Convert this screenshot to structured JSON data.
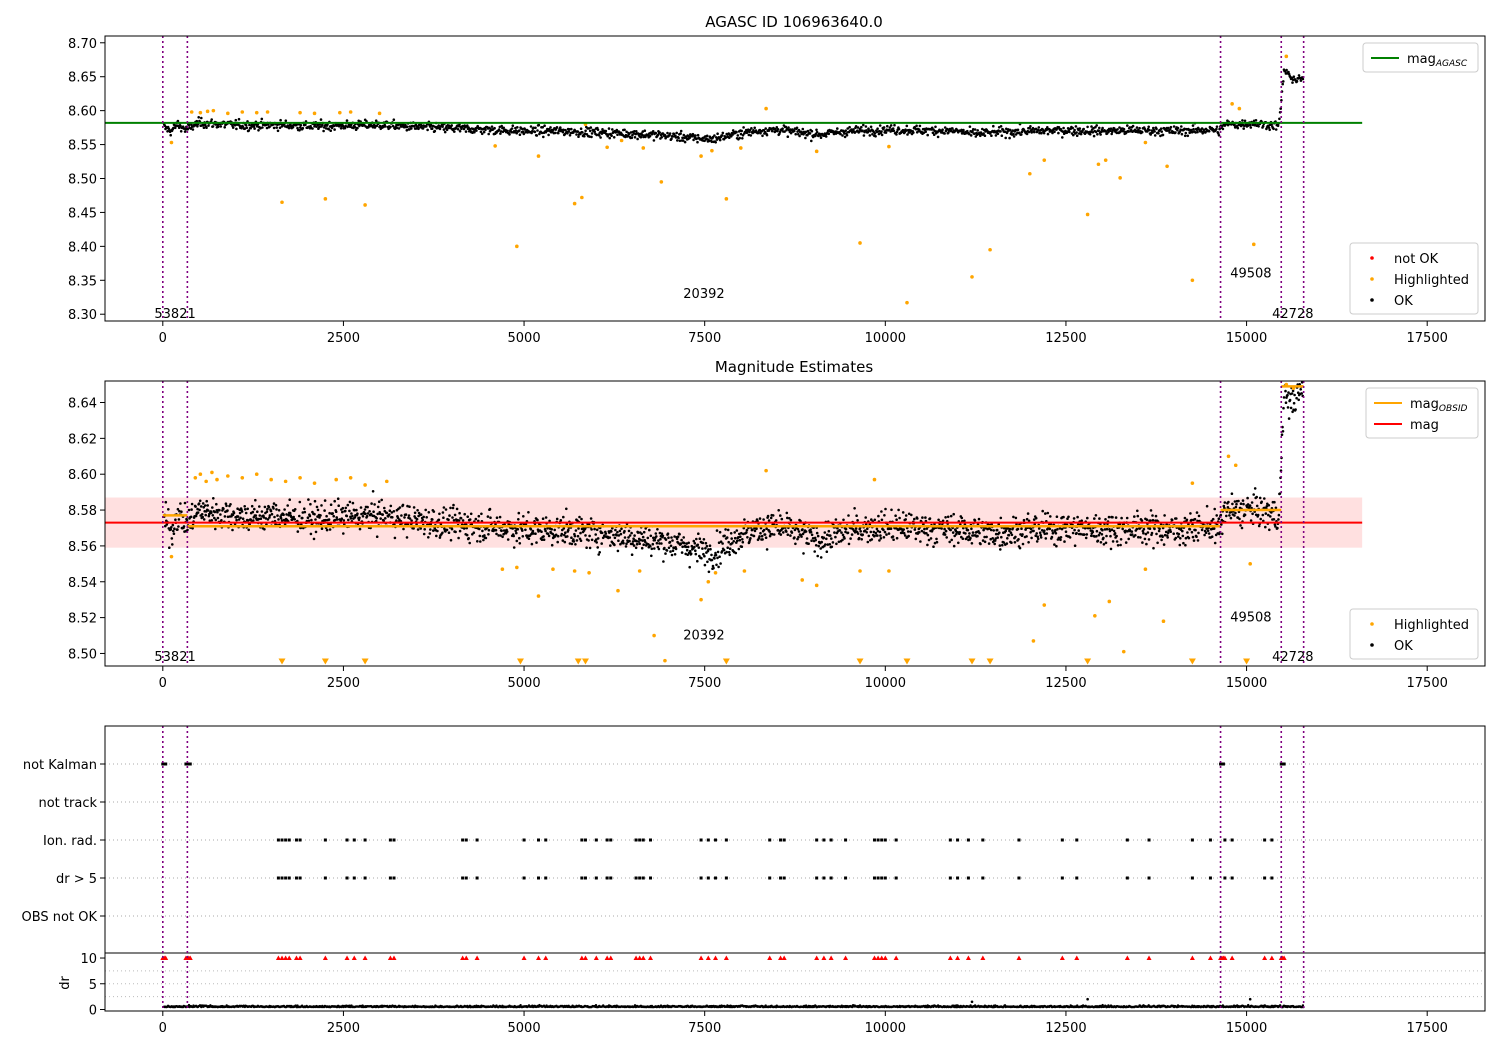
{
  "chart_data": [
    {
      "type": "scatter",
      "title": "AGASC ID 106963640.0",
      "xlim": [
        -800,
        18300
      ],
      "ylim": [
        8.29,
        8.71
      ],
      "xticks": [
        0,
        2500,
        5000,
        7500,
        10000,
        12500,
        15000,
        17500
      ],
      "xtick_labels": [
        "0",
        "2500",
        "5000",
        "7500",
        "10000",
        "12500",
        "15000",
        "17500"
      ],
      "yticks": [
        8.3,
        8.35,
        8.4,
        8.45,
        8.5,
        8.55,
        8.6,
        8.65,
        8.7
      ],
      "ytick_labels": [
        "8.30",
        "8.35",
        "8.40",
        "8.45",
        "8.50",
        "8.55",
        "8.60",
        "8.65",
        "8.70"
      ],
      "grid": false,
      "segment_boundaries": [
        0,
        340,
        14640,
        15480,
        15790
      ],
      "segment_labels": [
        {
          "text": "53821",
          "x": 170,
          "y": 8.3
        },
        {
          "text": "20392",
          "x": 7490,
          "y": 8.33
        },
        {
          "text": "49508",
          "x": 15060,
          "y": 8.36
        },
        {
          "text": "42728",
          "x": 15640,
          "y": 8.3
        }
      ],
      "series": [
        {
          "name": "mag",
          "name_sub": "AGASC",
          "kind": "line",
          "x": [
            -800,
            16600
          ],
          "y": [
            8.582,
            8.582
          ],
          "color": "#008000"
        },
        {
          "name": "not OK",
          "kind": "scatter",
          "color": "#ff0000",
          "x": [],
          "y": []
        },
        {
          "name": "Highlighted",
          "kind": "scatter",
          "color": "#ffa500",
          "x": [
            120,
            400,
            520,
            620,
            700,
            900,
            1100,
            1300,
            1450,
            1650,
            1900,
            2100,
            2250,
            2450,
            2600,
            2800,
            3000,
            4600,
            4900,
            5200,
            5700,
            5800,
            5850,
            6150,
            6350,
            6650,
            6900,
            7450,
            7600,
            7800,
            8000,
            8350,
            9050,
            9650,
            10050,
            10300,
            11200,
            11450,
            12000,
            12200,
            12800,
            12950,
            13050,
            13250,
            13600,
            13900,
            14250,
            14800,
            14900,
            15100,
            15550
          ],
          "y": [
            8.553,
            8.598,
            8.597,
            8.599,
            8.6,
            8.596,
            8.598,
            8.597,
            8.598,
            8.465,
            8.597,
            8.596,
            8.47,
            8.597,
            8.598,
            8.461,
            8.596,
            8.548,
            8.4,
            8.533,
            8.463,
            8.472,
            8.58,
            8.546,
            8.556,
            8.545,
            8.495,
            8.533,
            8.541,
            8.47,
            8.545,
            8.603,
            8.54,
            8.405,
            8.547,
            8.317,
            8.355,
            8.395,
            8.507,
            8.527,
            8.447,
            8.521,
            8.527,
            8.501,
            8.553,
            8.518,
            8.35,
            8.61,
            8.603,
            8.403,
            8.68
          ]
        },
        {
          "name": "OK",
          "kind": "scatter",
          "color": "#000000",
          "sampled": true,
          "x": [
            20,
            120,
            200,
            320,
            500,
            800,
            1200,
            1600,
            2000,
            2500,
            3000,
            3500,
            4000,
            4500,
            5000,
            5500,
            6000,
            6500,
            7000,
            7300,
            7600,
            7900,
            8200,
            8500,
            8800,
            9100,
            9500,
            10000,
            10500,
            11000,
            11200,
            11500,
            12000,
            12500,
            13000,
            13500,
            14000,
            14500,
            14620,
            14700,
            14900,
            15100,
            15300,
            15450,
            15520,
            15600,
            15700,
            15780
          ],
          "y": [
            8.575,
            8.57,
            8.58,
            8.572,
            8.582,
            8.58,
            8.578,
            8.579,
            8.577,
            8.578,
            8.579,
            8.576,
            8.574,
            8.572,
            8.57,
            8.57,
            8.568,
            8.566,
            8.563,
            8.56,
            8.558,
            8.565,
            8.57,
            8.572,
            8.568,
            8.565,
            8.57,
            8.572,
            8.571,
            8.57,
            8.566,
            8.568,
            8.57,
            8.571,
            8.57,
            8.571,
            8.57,
            8.572,
            8.57,
            8.58,
            8.58,
            8.582,
            8.579,
            8.578,
            8.66,
            8.65,
            8.645,
            8.648
          ]
        }
      ],
      "legends": [
        {
          "loc": "upper right",
          "entries": [
            {
              "label": "mag",
              "sub": "AGASC",
              "kind": "line",
              "color": "#008000"
            }
          ]
        },
        {
          "loc": "lower right",
          "entries": [
            {
              "label": "not OK",
              "kind": "dot",
              "color": "#ff0000"
            },
            {
              "label": "Highlighted",
              "kind": "dot",
              "color": "#ffa500"
            },
            {
              "label": "OK",
              "kind": "dot",
              "color": "#000000"
            }
          ]
        }
      ]
    },
    {
      "type": "scatter",
      "title": "Magnitude Estimates",
      "xlim": [
        -800,
        18300
      ],
      "ylim": [
        8.493,
        8.652
      ],
      "xticks": [
        0,
        2500,
        5000,
        7500,
        10000,
        12500,
        15000,
        17500
      ],
      "xtick_labels": [
        "0",
        "2500",
        "5000",
        "7500",
        "10000",
        "12500",
        "15000",
        "17500"
      ],
      "yticks": [
        8.5,
        8.52,
        8.54,
        8.56,
        8.58,
        8.6,
        8.62,
        8.64
      ],
      "ytick_labels": [
        "8.50",
        "8.52",
        "8.54",
        "8.56",
        "8.58",
        "8.60",
        "8.62",
        "8.64"
      ],
      "grid": false,
      "segment_boundaries": [
        0,
        340,
        14640,
        15480,
        15790
      ],
      "segment_labels": [
        {
          "text": "53821",
          "x": 170,
          "y": 8.498
        },
        {
          "text": "20392",
          "x": 7490,
          "y": 8.51
        },
        {
          "text": "49508",
          "x": 15060,
          "y": 8.52
        },
        {
          "text": "42728",
          "x": 15640,
          "y": 8.498
        }
      ],
      "band": {
        "x": [
          -800,
          16600
        ],
        "y": [
          8.559,
          8.587
        ],
        "color": "#ff0000",
        "alpha": 0.12
      },
      "series": [
        {
          "name": "mag",
          "name_sub": "OBSID",
          "kind": "step",
          "color": "#ffa500",
          "segments": [
            {
              "x": [
                0,
                340
              ],
              "y": 8.577
            },
            {
              "x": [
                340,
                14640
              ],
              "y": 8.571
            },
            {
              "x": [
                14640,
                15480
              ],
              "y": 8.58
            },
            {
              "x": [
                15480,
                15790
              ],
              "y": 8.649
            }
          ]
        },
        {
          "name": "mag",
          "kind": "line",
          "color": "#ff0000",
          "x": [
            -800,
            16600
          ],
          "y": [
            8.573,
            8.573
          ]
        },
        {
          "name": "Highlighted",
          "kind": "scatter",
          "color": "#ffa500",
          "x": [
            120,
            450,
            520,
            600,
            680,
            750,
            900,
            1100,
            1300,
            1500,
            1700,
            1900,
            2100,
            2400,
            2600,
            2800,
            3100,
            4700,
            4900,
            5200,
            5400,
            5700,
            5900,
            6300,
            6600,
            6800,
            6950,
            7450,
            7550,
            7650,
            8050,
            8350,
            8850,
            9050,
            9650,
            9850,
            10050,
            12050,
            12200,
            12900,
            13100,
            13300,
            13600,
            13850,
            14250,
            14750,
            14850,
            15050,
            15550,
            15650
          ],
          "y": [
            8.554,
            8.598,
            8.6,
            8.596,
            8.601,
            8.597,
            8.599,
            8.598,
            8.6,
            8.597,
            8.596,
            8.598,
            8.595,
            8.597,
            8.598,
            8.594,
            8.596,
            8.547,
            8.548,
            8.532,
            8.547,
            8.546,
            8.545,
            8.535,
            8.546,
            8.51,
            8.496,
            8.53,
            8.54,
            8.545,
            8.546,
            8.602,
            8.541,
            8.538,
            8.546,
            8.597,
            8.546,
            8.507,
            8.527,
            8.521,
            8.529,
            8.501,
            8.547,
            8.518,
            8.595,
            8.61,
            8.605,
            8.55,
            8.65,
            8.648
          ]
        },
        {
          "name": "Highlighted (below range)",
          "kind": "down-triangle",
          "color": "#ffa500",
          "x": [
            1650,
            2250,
            2800,
            4950,
            5750,
            5850,
            7800,
            9650,
            10300,
            11200,
            11450,
            12800,
            14250,
            15000
          ],
          "y": [
            8.493,
            8.493,
            8.493,
            8.493,
            8.493,
            8.493,
            8.493,
            8.493,
            8.493,
            8.493,
            8.493,
            8.493,
            8.493,
            8.493
          ]
        },
        {
          "name": "OK",
          "kind": "scatter",
          "color": "#000000",
          "sampled": true,
          "x": [
            20,
            120,
            200,
            320,
            500,
            800,
            1200,
            1600,
            2000,
            2500,
            3000,
            3500,
            4000,
            4500,
            5000,
            5500,
            6000,
            6500,
            7000,
            7300,
            7600,
            7900,
            8200,
            8500,
            8800,
            9100,
            9500,
            10000,
            10500,
            11000,
            11500,
            12000,
            12500,
            13000,
            13500,
            14000,
            14500,
            14620,
            14700,
            14900,
            15100,
            15300,
            15450,
            15520,
            15600,
            15700,
            15780
          ],
          "y": [
            8.575,
            8.568,
            8.578,
            8.572,
            8.58,
            8.578,
            8.576,
            8.577,
            8.575,
            8.576,
            8.577,
            8.574,
            8.572,
            8.571,
            8.569,
            8.569,
            8.567,
            8.565,
            8.562,
            8.559,
            8.556,
            8.564,
            8.569,
            8.571,
            8.567,
            8.563,
            8.569,
            8.571,
            8.57,
            8.569,
            8.567,
            8.569,
            8.57,
            8.569,
            8.57,
            8.569,
            8.571,
            8.569,
            8.58,
            8.579,
            8.581,
            8.578,
            8.577,
            8.646,
            8.64,
            8.644,
            8.647
          ]
        }
      ],
      "legends": [
        {
          "loc": "upper right",
          "entries": [
            {
              "label": "mag",
              "sub": "OBSID",
              "kind": "line",
              "color": "#ffa500"
            },
            {
              "label": "mag",
              "kind": "line",
              "color": "#ff0000"
            }
          ]
        },
        {
          "loc": "lower right",
          "entries": [
            {
              "label": "Highlighted",
              "kind": "dot",
              "color": "#ffa500"
            },
            {
              "label": "OK",
              "kind": "dot",
              "color": "#000000"
            }
          ]
        }
      ]
    },
    {
      "type": "scatter",
      "title": "",
      "xlim": [
        -800,
        18300
      ],
      "xticks": [
        0,
        2500,
        5000,
        7500,
        10000,
        12500,
        15000,
        17500
      ],
      "xtick_labels": [
        "0",
        "2500",
        "5000",
        "7500",
        "10000",
        "12500",
        "15000",
        "17500"
      ],
      "ylabel": "dr",
      "flag_rows": [
        "not Kalman",
        "not track",
        "Ion. rad.",
        "dr > 5",
        "OBS not OK"
      ],
      "dr_yticks": [
        0,
        5,
        10
      ],
      "dr_ytick_labels": [
        "0",
        "5",
        "10"
      ],
      "dr_ylim": [
        -0.5,
        10.5
      ],
      "grid": "flag rows dotted",
      "segment_boundaries": [
        0,
        340,
        14640,
        15480,
        15790
      ],
      "flags": {
        "not Kalman": [
          0,
          20,
          40,
          320,
          340,
          360,
          380,
          14640,
          14660,
          14680,
          15480,
          15500,
          15520
        ],
        "Ion. rad.": [
          1600,
          1650,
          1700,
          1750,
          1850,
          1900,
          2250,
          2550,
          2650,
          2800,
          3150,
          3200,
          4150,
          4200,
          4350,
          5000,
          5200,
          5300,
          5800,
          5850,
          6000,
          6150,
          6200,
          6550,
          6600,
          6650,
          6750,
          7450,
          7550,
          7650,
          7800,
          8400,
          8550,
          8600,
          9050,
          9150,
          9250,
          9450,
          9850,
          9900,
          9950,
          10000,
          10150,
          10900,
          11000,
          11150,
          11350,
          11850,
          12450,
          12650,
          13350,
          13650,
          14250,
          14500,
          14700,
          14800,
          15250,
          15350
        ],
        "dr > 5": [
          1600,
          1650,
          1700,
          1750,
          1850,
          1900,
          2250,
          2550,
          2650,
          2800,
          3150,
          3200,
          4150,
          4200,
          4350,
          5000,
          5200,
          5300,
          5800,
          5850,
          6000,
          6150,
          6200,
          6550,
          6600,
          6650,
          6750,
          7450,
          7550,
          7650,
          7800,
          8400,
          8550,
          8600,
          9050,
          9150,
          9250,
          9450,
          9850,
          9900,
          9950,
          10000,
          10150,
          10900,
          11000,
          11150,
          11350,
          11850,
          12450,
          12650,
          13350,
          13650,
          14250,
          14500,
          14700,
          14800,
          15250,
          15350
        ]
      },
      "dr_series": {
        "name": "dr",
        "color": "#000000",
        "sampled": true,
        "x": [
          20,
          200,
          500,
          1000,
          1500,
          2000,
          2500,
          3000,
          3500,
          4000,
          4500,
          5000,
          5500,
          6000,
          6500,
          7000,
          7500,
          8000,
          8500,
          9000,
          9500,
          10000,
          10500,
          11000,
          11200,
          11500,
          12000,
          12500,
          12800,
          13000,
          13500,
          14000,
          14500,
          14700,
          15000,
          15050,
          15300,
          15500,
          15700
        ],
        "y": [
          0.4,
          0.5,
          0.5,
          0.6,
          0.5,
          0.5,
          0.6,
          0.5,
          0.5,
          0.6,
          0.5,
          0.5,
          0.5,
          0.6,
          0.5,
          0.5,
          0.6,
          0.5,
          0.5,
          0.6,
          0.5,
          0.6,
          0.5,
          0.5,
          1.5,
          0.5,
          0.6,
          0.5,
          2.0,
          0.5,
          0.5,
          0.6,
          0.5,
          0.6,
          0.5,
          2.0,
          0.7,
          0.8,
          0.9
        ]
      },
      "dr_limit": 10
    }
  ]
}
